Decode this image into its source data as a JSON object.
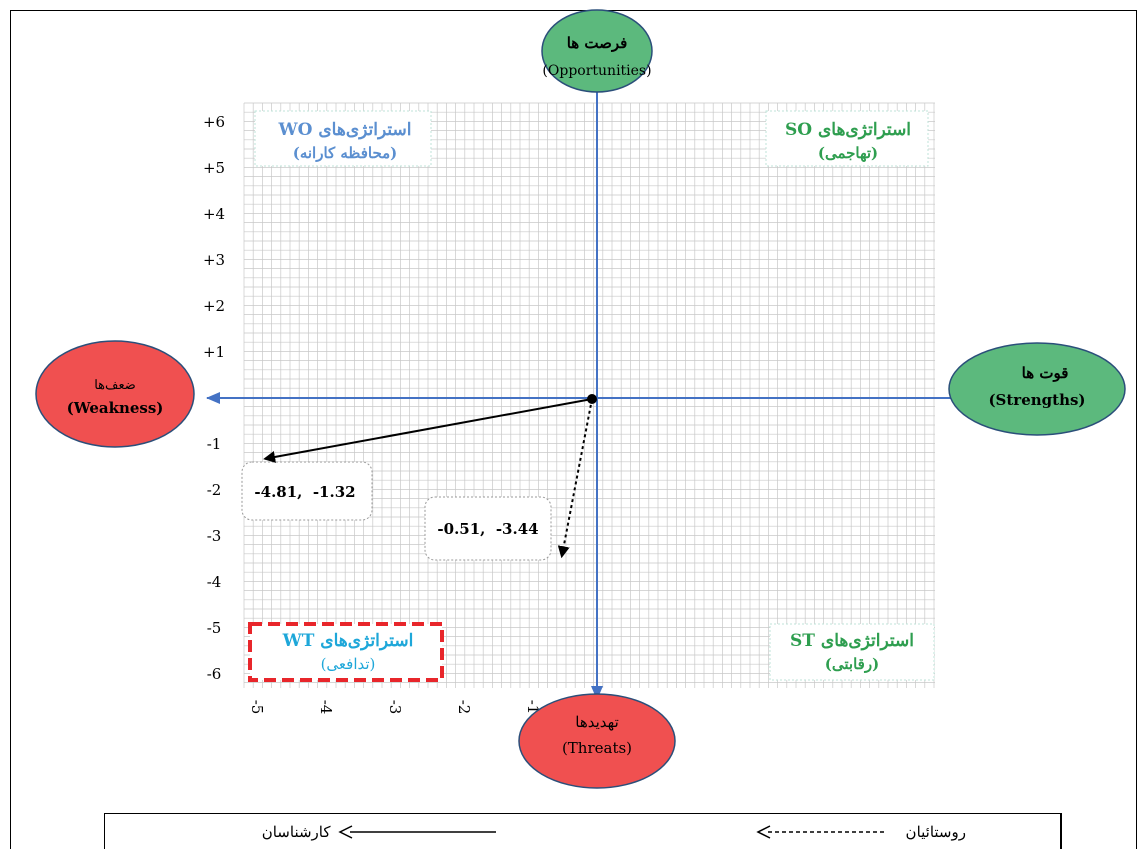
{
  "chart_data": {
    "type": "scatter",
    "title": "",
    "xlabel": "",
    "ylabel": "",
    "xlim": [
      -6,
      6
    ],
    "ylim": [
      -6,
      6
    ],
    "grid": true,
    "y_ticks": [
      {
        "value": 6,
        "label": "+6"
      },
      {
        "value": 5,
        "label": "+5"
      },
      {
        "value": 4,
        "label": "+4"
      },
      {
        "value": 3,
        "label": "+3"
      },
      {
        "value": 2,
        "label": "+2"
      },
      {
        "value": 1,
        "label": "+1"
      },
      {
        "value": -1,
        "label": "-1"
      },
      {
        "value": -2,
        "label": "-2"
      },
      {
        "value": -3,
        "label": "-3"
      },
      {
        "value": -4,
        "label": "-4"
      },
      {
        "value": -5,
        "label": "-5"
      },
      {
        "value": -6,
        "label": "-6"
      }
    ],
    "x_ticks": [
      {
        "value": -5,
        "label": "-5"
      },
      {
        "value": -4,
        "label": "-4"
      },
      {
        "value": -3,
        "label": "-3"
      },
      {
        "value": -2,
        "label": "-2"
      },
      {
        "value": -1,
        "label": "-1"
      }
    ],
    "origin_point": {
      "x": 0,
      "y": 0
    },
    "series": [
      {
        "x": -4.81,
        "y": -1.32,
        "label": "-4.81,  -1.32",
        "line": "solid",
        "color": "#000000"
      },
      {
        "x": -0.51,
        "y": -3.44,
        "label": "-0.51,  -3.44",
        "line": "dotted",
        "color": "#000000"
      }
    ],
    "axis_labels": {
      "top": {
        "fa": "فرصت ها",
        "en": "(Opportunities)",
        "color": "#5cb97d"
      },
      "right": {
        "fa": "قوت ها",
        "en": "(Strengths)",
        "color": "#5cb97d"
      },
      "left": {
        "fa": "ضعف‌ها",
        "en": "(Weakness)",
        "color": "#f05050"
      },
      "bottom": {
        "fa": "تهدیدها",
        "en": "(Threats)",
        "color": "#f05050"
      }
    },
    "quadrants": {
      "wo": {
        "line1": "استراتژی‌های WO",
        "line2": "(محافظه کارانه)",
        "color": "#5b8fd0"
      },
      "so": {
        "line1": "استراتژی‌های SO",
        "line2": "(تهاجمی)",
        "color": "#2e9e4f"
      },
      "wt": {
        "line1": "استراتژی‌های WT",
        "line2": "(تدافعی)",
        "color": "#1ea7d9"
      },
      "st": {
        "line1": "استراتژی‌های ST",
        "line2": "(رقابتی)",
        "color": "#2e9e4f"
      }
    },
    "highlighted_quadrant": "wt",
    "axis_color": "#4472c4",
    "grid_color": "#c8c8c8"
  },
  "legend": {
    "experts": "کارشناسان",
    "villagers": "روستائیان"
  }
}
